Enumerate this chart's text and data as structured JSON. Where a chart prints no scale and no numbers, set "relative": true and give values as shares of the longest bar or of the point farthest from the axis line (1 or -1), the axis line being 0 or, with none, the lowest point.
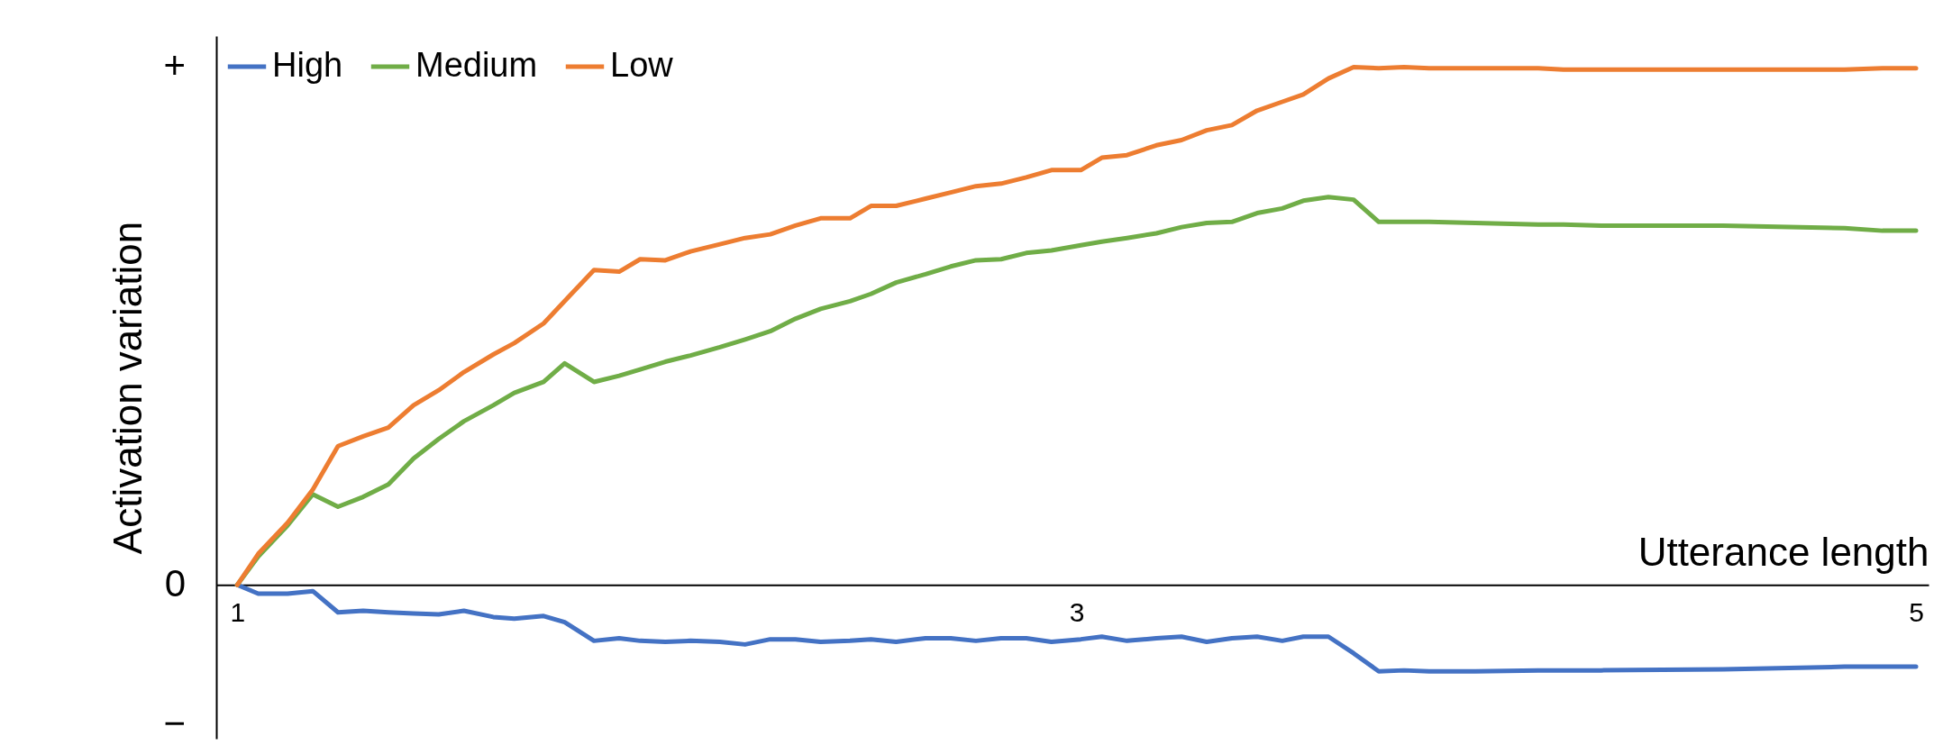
{
  "chart_data": {
    "type": "line",
    "xlabel": "Utterance length",
    "ylabel": "Activation variation",
    "relative": true,
    "legend": "top left",
    "marker": "none",
    "line_style": "solid",
    "xlim": [
      0.95,
      5.03
    ],
    "xticks": [
      1,
      3,
      5
    ],
    "ylim": [
      -0.297,
      1.06
    ],
    "annotations": [
      "+",
      "0",
      "−"
    ],
    "x": [
      1,
      1.05,
      1.12,
      1.18,
      1.24,
      1.3,
      1.36,
      1.42,
      1.48,
      1.54,
      1.61,
      1.66,
      1.73,
      1.78,
      1.85,
      1.91,
      1.96,
      2.02,
      2.08,
      2.15,
      2.21,
      2.27,
      2.33,
      2.39,
      2.46,
      2.51,
      2.57,
      2.64,
      2.7,
      2.76,
      2.82,
      2.88,
      2.94,
      3.01,
      3.06,
      3.12,
      3.19,
      3.25,
      3.31,
      3.37,
      3.43,
      3.49,
      3.54,
      3.6,
      3.66,
      3.72,
      3.78,
      3.84,
      3.95,
      4.1,
      4.16,
      4.25,
      4.54,
      4.83,
      4.92,
      5
    ],
    "series": [
      {
        "name": "High",
        "color": "#4472c4",
        "values": [
          0,
          -0.017,
          -0.017,
          -0.012,
          -0.053,
          -0.05,
          -0.053,
          -0.055,
          -0.057,
          -0.05,
          -0.062,
          -0.065,
          -0.06,
          -0.072,
          -0.108,
          -0.103,
          -0.108,
          -0.11,
          -0.108,
          -0.11,
          -0.115,
          -0.105,
          -0.105,
          -0.11,
          -0.108,
          -0.105,
          -0.11,
          -0.103,
          -0.103,
          -0.108,
          -0.103,
          -0.103,
          -0.11,
          -0.105,
          -0.1,
          -0.108,
          -0.103,
          -0.1,
          -0.11,
          -0.103,
          -0.1,
          -0.108,
          -0.1,
          -0.1,
          -0.132,
          -0.167,
          -0.165,
          -0.167,
          -0.167,
          -0.165,
          -0.165,
          -0.165,
          -0.163,
          -0.158,
          -0.158,
          -0.158
        ]
      },
      {
        "name": "Medium",
        "color": "#70ad47",
        "values": [
          0,
          0.055,
          0.115,
          0.175,
          0.151,
          0.17,
          0.194,
          0.244,
          0.282,
          0.316,
          0.347,
          0.371,
          0.392,
          0.428,
          0.392,
          0.404,
          0.416,
          0.431,
          0.443,
          0.459,
          0.474,
          0.49,
          0.514,
          0.533,
          0.548,
          0.562,
          0.584,
          0.6,
          0.615,
          0.627,
          0.629,
          0.641,
          0.646,
          0.656,
          0.663,
          0.67,
          0.679,
          0.691,
          0.699,
          0.701,
          0.718,
          0.727,
          0.742,
          0.749,
          0.744,
          0.701,
          0.701,
          0.701,
          0.699,
          0.696,
          0.696,
          0.694,
          0.694,
          0.689,
          0.684,
          0.684
        ]
      },
      {
        "name": "Low",
        "color": "#ed7d31",
        "values": [
          0,
          0.06,
          0.12,
          0.184,
          0.268,
          0.287,
          0.304,
          0.347,
          0.376,
          0.411,
          0.445,
          0.467,
          0.505,
          0.548,
          0.608,
          0.605,
          0.629,
          0.627,
          0.644,
          0.658,
          0.67,
          0.677,
          0.694,
          0.708,
          0.708,
          0.732,
          0.732,
          0.746,
          0.758,
          0.77,
          0.775,
          0.787,
          0.801,
          0.801,
          0.825,
          0.83,
          0.849,
          0.859,
          0.878,
          0.888,
          0.916,
          0.933,
          0.947,
          0.978,
          1,
          0.998,
          1,
          0.998,
          0.998,
          0.998,
          0.995,
          0.995,
          0.995,
          0.995,
          0.998,
          0.998
        ]
      }
    ]
  }
}
